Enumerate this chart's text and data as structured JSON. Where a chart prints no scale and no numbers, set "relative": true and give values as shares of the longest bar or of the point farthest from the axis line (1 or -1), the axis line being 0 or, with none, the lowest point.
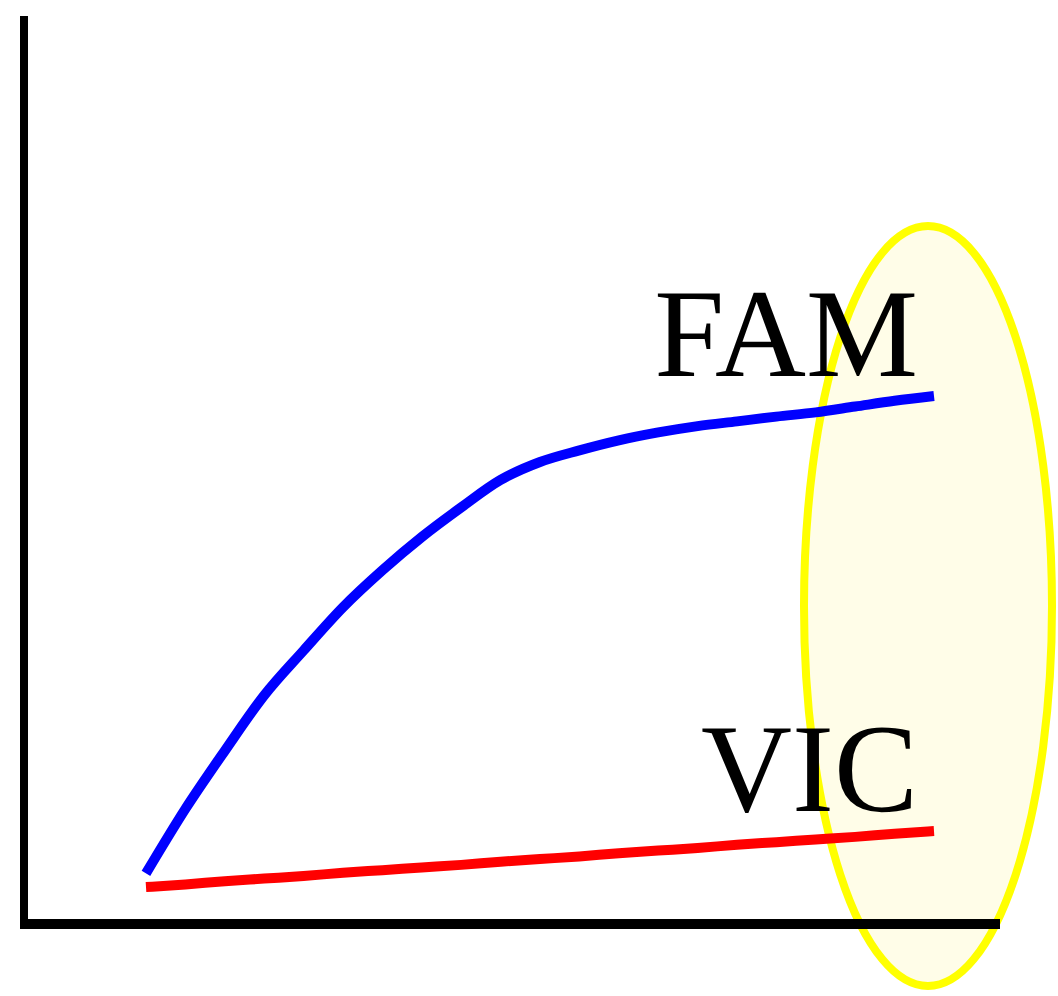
{
  "chart_data": {
    "type": "line",
    "relative": true,
    "categories": [
      null,
      null,
      null,
      null,
      null,
      null,
      null,
      null,
      null,
      null,
      null,
      null,
      null,
      null,
      null,
      null,
      null,
      null,
      null,
      null,
      null
    ],
    "series": [
      {
        "name": "FAM",
        "color": "#0000ff",
        "values": [
          0.096,
          0.218,
          0.328,
          0.433,
          0.518,
          0.6,
          0.67,
          0.733,
          0.789,
          0.841,
          0.875,
          0.897,
          0.916,
          0.931,
          0.943,
          0.952,
          0.961,
          0.969,
          0.98,
          0.991,
          1
        ]
      },
      {
        "name": "VIC",
        "color": "#ff0000",
        "values": [
          0.07,
          0.075,
          0.081,
          0.086,
          0.091,
          0.097,
          0.102,
          0.107,
          0.112,
          0.118,
          0.123,
          0.128,
          0.134,
          0.139,
          0.144,
          0.15,
          0.155,
          0.16,
          0.165,
          0.171,
          0.176
        ]
      }
    ]
  }
}
